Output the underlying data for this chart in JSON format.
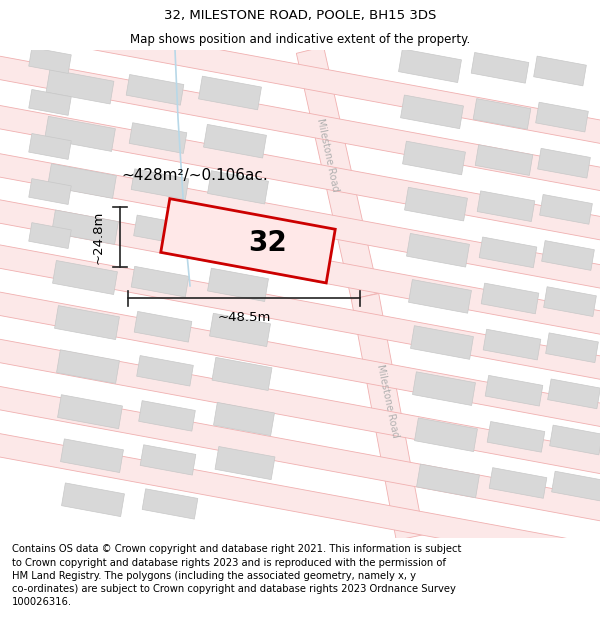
{
  "title": "32, MILESTONE ROAD, POOLE, BH15 3DS",
  "subtitle": "Map shows position and indicative extent of the property.",
  "footer": "Contains OS data © Crown copyright and database right 2021. This information is subject\nto Crown copyright and database rights 2023 and is reproduced with the permission of\nHM Land Registry. The polygons (including the associated geometry, namely x, y\nco-ordinates) are subject to Crown copyright and database rights 2023 Ordnance Survey\n100026316.",
  "bg_color": "#ffffff",
  "map_bg": "#ffffff",
  "title_fontsize": 9.5,
  "subtitle_fontsize": 8.5,
  "footer_fontsize": 7.2,
  "road_fill": "#fce8e8",
  "road_edge": "#f0b0b0",
  "road_lw": 0.6,
  "building_fill": "#d8d8d8",
  "building_edge": "#c8c8c8",
  "building_lw": 0.5,
  "highlight_fill": "#ffe8e8",
  "highlight_edge": "#cc0000",
  "highlight_lw": 2.0,
  "area_label": "~428m²/~0.106ac.",
  "width_label": "~48.5m",
  "height_label": "~24.8m",
  "number_label": "32",
  "road_label": "Milestone Road",
  "road_text_color": "#b0b0b0",
  "dim_color": "#222222",
  "area_fontsize": 11,
  "number_fontsize": 20,
  "dim_fontsize": 9.5,
  "road_label_fontsize": 7
}
